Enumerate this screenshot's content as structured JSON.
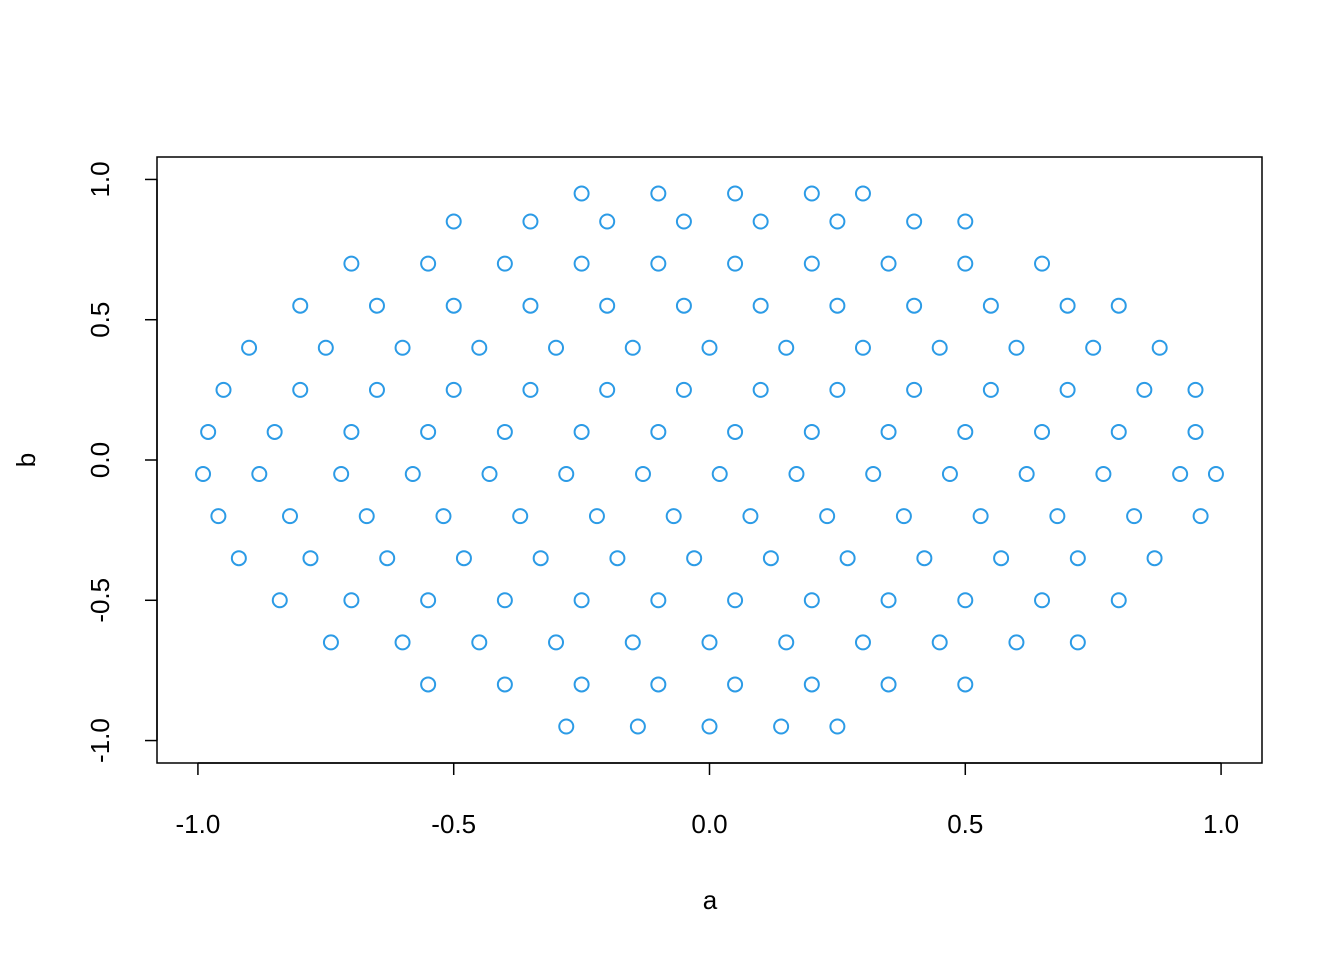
{
  "chart_data": {
    "type": "scatter",
    "x_label": "a",
    "y_label": "b",
    "color": "#2c9be6",
    "xlim": [
      -1.08,
      1.08
    ],
    "ylim": [
      -1.08,
      1.08
    ],
    "xticks": [
      {
        "value": -1,
        "label": "-1.0"
      },
      -0.5,
      {
        "value": 0,
        "label": "0.0"
      },
      0.5,
      {
        "value": 1,
        "label": "1.0"
      }
    ],
    "yticks": [
      {
        "value": -1,
        "label": "-1.0"
      },
      -0.5,
      {
        "value": 0,
        "label": "0.0"
      },
      0.5,
      {
        "value": 1,
        "label": "1.0"
      }
    ],
    "x": [
      -0.25,
      -0.1,
      0.05,
      0.2,
      0.3,
      -0.5,
      -0.35,
      -0.2,
      -0.05,
      0.1,
      0.25,
      0.4,
      0.5,
      -0.7,
      -0.55,
      -0.4,
      -0.25,
      -0.1,
      0.05,
      0.2,
      0.35,
      0.5,
      0.65,
      -0.8,
      -0.65,
      -0.5,
      -0.35,
      -0.2,
      -0.05,
      0.1,
      0.25,
      0.4,
      0.55,
      0.7,
      0.8,
      -0.9,
      -0.75,
      -0.6,
      -0.45,
      -0.3,
      -0.15,
      0,
      0.15,
      0.3,
      0.45,
      0.6,
      0.75,
      0.88,
      -0.95,
      -0.8,
      -0.65,
      -0.5,
      -0.35,
      -0.2,
      -0.05,
      0.1,
      0.25,
      0.4,
      0.55,
      0.7,
      0.85,
      0.95,
      -0.98,
      -0.85,
      -0.7,
      -0.55,
      -0.4,
      -0.25,
      -0.1,
      0.05,
      0.2,
      0.35,
      0.5,
      0.65,
      0.8,
      0.95,
      -0.99,
      -0.88,
      -0.72,
      -0.58,
      -0.43,
      -0.28,
      -0.13,
      0.02,
      0.17,
      0.32,
      0.47,
      0.62,
      0.77,
      0.92,
      0.99,
      -0.96,
      -0.82,
      -0.67,
      -0.52,
      -0.37,
      -0.22,
      -0.07,
      0.08,
      0.23,
      0.38,
      0.53,
      0.68,
      0.83,
      0.96,
      -0.92,
      -0.78,
      -0.63,
      -0.48,
      -0.33,
      -0.18,
      -0.03,
      0.12,
      0.27,
      0.42,
      0.57,
      0.72,
      0.87,
      -0.84,
      -0.7,
      -0.55,
      -0.4,
      -0.25,
      -0.1,
      0.05,
      0.2,
      0.35,
      0.5,
      0.65,
      0.8,
      -0.74,
      -0.6,
      -0.45,
      -0.3,
      -0.15,
      0,
      0.15,
      0.3,
      0.45,
      0.6,
      0.72,
      -0.55,
      -0.4,
      -0.25,
      -0.1,
      0.05,
      0.2,
      0.35,
      0.5,
      -0.28,
      -0.14,
      0,
      0.14,
      0.25
    ],
    "values": [
      0.95,
      0.95,
      0.95,
      0.95,
      0.95,
      0.85,
      0.85,
      0.85,
      0.85,
      0.85,
      0.85,
      0.85,
      0.85,
      0.7,
      0.7,
      0.7,
      0.7,
      0.7,
      0.7,
      0.7,
      0.7,
      0.7,
      0.7,
      0.55,
      0.55,
      0.55,
      0.55,
      0.55,
      0.55,
      0.55,
      0.55,
      0.55,
      0.55,
      0.55,
      0.55,
      0.4,
      0.4,
      0.4,
      0.4,
      0.4,
      0.4,
      0.4,
      0.4,
      0.4,
      0.4,
      0.4,
      0.4,
      0.4,
      0.25,
      0.25,
      0.25,
      0.25,
      0.25,
      0.25,
      0.25,
      0.25,
      0.25,
      0.25,
      0.25,
      0.25,
      0.25,
      0.25,
      0.1,
      0.1,
      0.1,
      0.1,
      0.1,
      0.1,
      0.1,
      0.1,
      0.1,
      0.1,
      0.1,
      0.1,
      0.1,
      0.1,
      -0.05,
      -0.05,
      -0.05,
      -0.05,
      -0.05,
      -0.05,
      -0.05,
      -0.05,
      -0.05,
      -0.05,
      -0.05,
      -0.05,
      -0.05,
      -0.05,
      -0.05,
      -0.2,
      -0.2,
      -0.2,
      -0.2,
      -0.2,
      -0.2,
      -0.2,
      -0.2,
      -0.2,
      -0.2,
      -0.2,
      -0.2,
      -0.2,
      -0.2,
      -0.35,
      -0.35,
      -0.35,
      -0.35,
      -0.35,
      -0.35,
      -0.35,
      -0.35,
      -0.35,
      -0.35,
      -0.35,
      -0.35,
      -0.35,
      -0.5,
      -0.5,
      -0.5,
      -0.5,
      -0.5,
      -0.5,
      -0.5,
      -0.5,
      -0.5,
      -0.5,
      -0.5,
      -0.5,
      -0.65,
      -0.65,
      -0.65,
      -0.65,
      -0.65,
      -0.65,
      -0.65,
      -0.65,
      -0.65,
      -0.65,
      -0.65,
      -0.8,
      -0.8,
      -0.8,
      -0.8,
      -0.8,
      -0.8,
      -0.8,
      -0.8,
      -0.95,
      -0.95,
      -0.95,
      -0.95,
      -0.95
    ]
  }
}
